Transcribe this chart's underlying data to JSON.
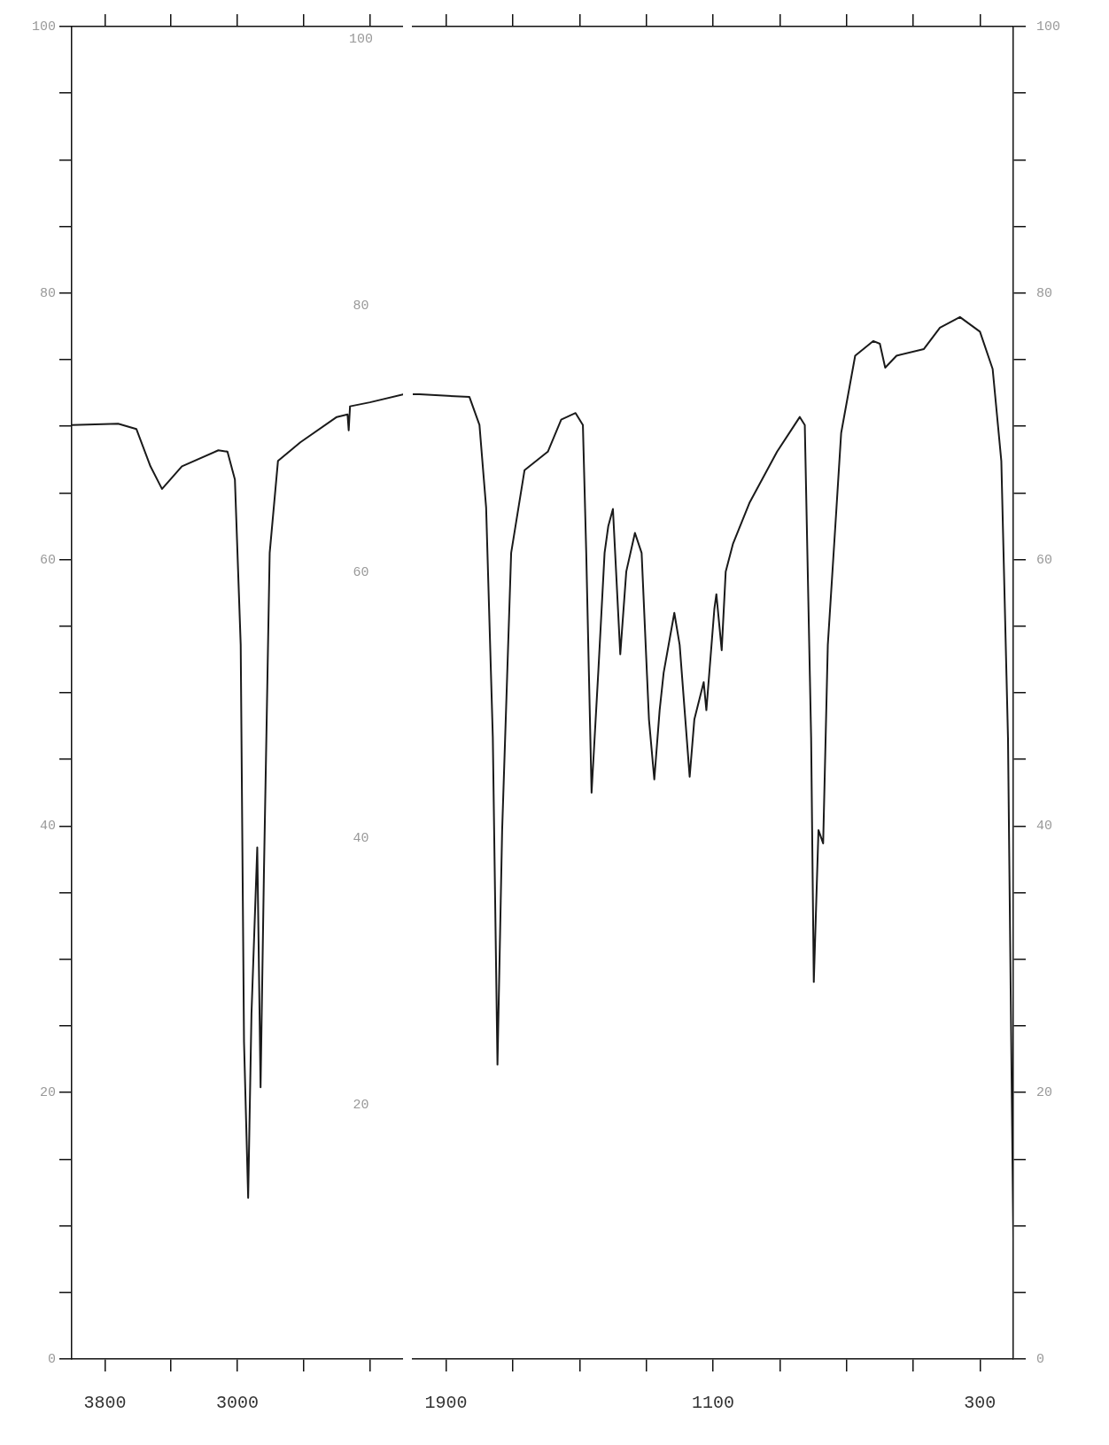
{
  "chart_data": [
    {
      "type": "line",
      "x": [
        4000,
        3720,
        3610,
        3525,
        3455,
        3335,
        3115,
        3060,
        3015,
        2980,
        2960,
        2935,
        2915,
        2880,
        2860,
        2840,
        2805,
        2755,
        2620,
        2400,
        2335,
        2328,
        2320,
        2200,
        2000
      ],
      "series": [
        {
          "color": "#1a1a1a",
          "values": [
            70.1,
            70.2,
            69.8,
            67.0,
            65.3,
            67.0,
            68.2,
            68.1,
            66.0,
            53.6,
            23.8,
            12.1,
            25.9,
            38.4,
            20.4,
            36.3,
            60.5,
            67.4,
            68.8,
            70.7,
            70.9,
            69.7,
            71.5,
            71.8,
            72.4
          ]
        }
      ],
      "xlim": [
        4000,
        2000
      ],
      "xticks": [
        3800,
        {
          "value": 3400,
          "label": null
        },
        3000,
        {
          "value": 2600,
          "label": null
        },
        {
          "value": 2200,
          "label": null
        }
      ],
      "ylim": [
        0,
        100
      ],
      "yticks": [
        0,
        {
          "value": 5,
          "label": null
        },
        {
          "value": 10,
          "label": null
        },
        {
          "value": 15,
          "label": null
        },
        20,
        {
          "value": 25,
          "label": null
        },
        {
          "value": 30,
          "label": null
        },
        {
          "value": 35,
          "label": null
        },
        40,
        {
          "value": 45,
          "label": null
        },
        {
          "value": 50,
          "label": null
        },
        {
          "value": 55,
          "label": null
        },
        60,
        {
          "value": 65,
          "label": null
        },
        {
          "value": 70,
          "label": null
        },
        {
          "value": 75,
          "label": null
        },
        80,
        {
          "value": 85,
          "label": null
        },
        {
          "value": 90,
          "label": null
        },
        {
          "value": 95,
          "label": null
        },
        100
      ],
      "annotations": [
        "100",
        "80",
        "60",
        "40",
        "20"
      ],
      "grid": false,
      "legend": false,
      "marker": "none",
      "line_style": "solid"
    },
    {
      "type": "line",
      "x": [
        2000,
        1980,
        1830,
        1800,
        1780,
        1760,
        1746,
        1732,
        1705,
        1665,
        1595,
        1555,
        1512,
        1490,
        1480,
        1464,
        1444,
        1425,
        1414,
        1400,
        1378,
        1360,
        1334,
        1314,
        1292,
        1276,
        1260,
        1248,
        1216,
        1200,
        1170,
        1156,
        1128,
        1120,
        1096,
        1090,
        1074,
        1062,
        1040,
        990,
        908,
        840,
        825,
        806,
        798,
        784,
        770,
        756,
        730,
        716,
        674,
        620,
        600,
        584,
        550,
        468,
        420,
        360,
        300,
        262,
        236,
        216,
        200
      ],
      "series": [
        {
          "color": "#1a1a1a",
          "axis": "y2",
          "values": [
            72.4,
            72.4,
            72.2,
            70.1,
            63.9,
            46.7,
            22.1,
            39.7,
            60.5,
            66.7,
            68.1,
            70.5,
            71.0,
            70.1,
            60.5,
            42.5,
            51.5,
            60.5,
            62.5,
            63.8,
            52.9,
            59.1,
            62.0,
            60.5,
            48.0,
            43.5,
            48.7,
            51.5,
            56.0,
            53.6,
            43.7,
            48.0,
            50.8,
            48.7,
            56.3,
            57.4,
            53.2,
            59.1,
            61.2,
            64.3,
            68.1,
            70.7,
            70.1,
            46.6,
            28.3,
            39.7,
            38.7,
            53.6,
            63.9,
            69.5,
            75.3,
            76.4,
            76.2,
            74.4,
            75.3,
            75.8,
            77.4,
            78.2,
            77.1,
            74.3,
            67.4,
            46.6,
            9.0
          ]
        }
      ],
      "xlim": [
        2000,
        200
      ],
      "xticks": [
        1900,
        {
          "value": 1700,
          "label": null
        },
        {
          "value": 1500,
          "label": null
        },
        {
          "value": 1300,
          "label": null
        },
        1100,
        {
          "value": 900,
          "label": null
        },
        {
          "value": 700,
          "label": null
        },
        {
          "value": 500,
          "label": null
        },
        300
      ],
      "y2lim": [
        0,
        100
      ],
      "y2ticks": [
        0,
        {
          "value": 5,
          "label": null
        },
        {
          "value": 10,
          "label": null
        },
        {
          "value": 15,
          "label": null
        },
        20,
        {
          "value": 25,
          "label": null
        },
        {
          "value": 30,
          "label": null
        },
        {
          "value": 35,
          "label": null
        },
        40,
        {
          "value": 45,
          "label": null
        },
        {
          "value": 50,
          "label": null
        },
        {
          "value": 55,
          "label": null
        },
        60,
        {
          "value": 65,
          "label": null
        },
        {
          "value": 70,
          "label": null
        },
        {
          "value": 75,
          "label": null
        },
        80,
        {
          "value": 85,
          "label": null
        },
        {
          "value": 90,
          "label": null
        },
        {
          "value": 95,
          "label": null
        },
        100
      ],
      "grid": false,
      "legend": false,
      "marker": "none",
      "line_style": "solid"
    }
  ]
}
